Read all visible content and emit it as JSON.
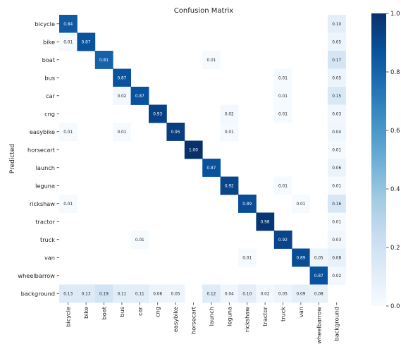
{
  "chart_data": {
    "type": "heatmap",
    "title": "Confusion Matrix",
    "ylabel": "Predicted",
    "xlabel": "",
    "classes": [
      "bicycle",
      "bike",
      "boat",
      "bus",
      "car",
      "cng",
      "easybike",
      "horsecart",
      "launch",
      "leguna",
      "rickshaw",
      "tractor",
      "truck",
      "van",
      "wheelbarrow",
      "background"
    ],
    "colormap": "Blues",
    "low_color": "#f7fbff",
    "high_color": "#08306b",
    "colorbar": {
      "min": 0.0,
      "max": 1.0,
      "ticks": [
        0.0,
        0.2,
        0.4,
        0.6,
        0.8,
        1.0
      ],
      "tick_labels": [
        "0.0",
        "0.2",
        "0.4",
        "0.6",
        "0.8",
        "1.0"
      ]
    },
    "cells": [
      {
        "row": "bicycle",
        "col": "bicycle",
        "value": 0.84
      },
      {
        "row": "bicycle",
        "col": "background",
        "value": 0.1
      },
      {
        "row": "bike",
        "col": "bicycle",
        "value": 0.01
      },
      {
        "row": "bike",
        "col": "bike",
        "value": 0.87
      },
      {
        "row": "bike",
        "col": "background",
        "value": 0.05
      },
      {
        "row": "boat",
        "col": "boat",
        "value": 0.81
      },
      {
        "row": "boat",
        "col": "launch",
        "value": 0.01
      },
      {
        "row": "boat",
        "col": "background",
        "value": 0.17
      },
      {
        "row": "bus",
        "col": "bus",
        "value": 0.87
      },
      {
        "row": "bus",
        "col": "truck",
        "value": 0.01
      },
      {
        "row": "bus",
        "col": "background",
        "value": 0.05
      },
      {
        "row": "car",
        "col": "bus",
        "value": 0.02
      },
      {
        "row": "car",
        "col": "car",
        "value": 0.87
      },
      {
        "row": "car",
        "col": "truck",
        "value": 0.01
      },
      {
        "row": "car",
        "col": "background",
        "value": 0.15
      },
      {
        "row": "cng",
        "col": "cng",
        "value": 0.93
      },
      {
        "row": "cng",
        "col": "leguna",
        "value": 0.02
      },
      {
        "row": "cng",
        "col": "truck",
        "value": 0.01
      },
      {
        "row": "cng",
        "col": "background",
        "value": 0.03
      },
      {
        "row": "easybike",
        "col": "bicycle",
        "value": 0.01
      },
      {
        "row": "easybike",
        "col": "bus",
        "value": 0.01
      },
      {
        "row": "easybike",
        "col": "easybike",
        "value": 0.95
      },
      {
        "row": "easybike",
        "col": "leguna",
        "value": 0.01
      },
      {
        "row": "easybike",
        "col": "background",
        "value": 0.04
      },
      {
        "row": "horsecart",
        "col": "horsecart",
        "value": 1.0
      },
      {
        "row": "horsecart",
        "col": "background",
        "value": 0.01
      },
      {
        "row": "launch",
        "col": "launch",
        "value": 0.87
      },
      {
        "row": "launch",
        "col": "background",
        "value": 0.06
      },
      {
        "row": "leguna",
        "col": "leguna",
        "value": 0.92
      },
      {
        "row": "leguna",
        "col": "truck",
        "value": 0.01
      },
      {
        "row": "leguna",
        "col": "background",
        "value": 0.01
      },
      {
        "row": "rickshaw",
        "col": "bicycle",
        "value": 0.01
      },
      {
        "row": "rickshaw",
        "col": "rickshaw",
        "value": 0.89
      },
      {
        "row": "rickshaw",
        "col": "van",
        "value": 0.01
      },
      {
        "row": "rickshaw",
        "col": "background",
        "value": 0.16
      },
      {
        "row": "tractor",
        "col": "tractor",
        "value": 0.98
      },
      {
        "row": "tractor",
        "col": "background",
        "value": 0.01
      },
      {
        "row": "truck",
        "col": "car",
        "value": 0.01
      },
      {
        "row": "truck",
        "col": "truck",
        "value": 0.92
      },
      {
        "row": "truck",
        "col": "background",
        "value": 0.03
      },
      {
        "row": "van",
        "col": "rickshaw",
        "value": 0.01
      },
      {
        "row": "van",
        "col": "van",
        "value": 0.89
      },
      {
        "row": "van",
        "col": "wheelbarrow",
        "value": 0.05
      },
      {
        "row": "van",
        "col": "background",
        "value": 0.08
      },
      {
        "row": "wheelbarrow",
        "col": "wheelbarrow",
        "value": 0.87
      },
      {
        "row": "wheelbarrow",
        "col": "background",
        "value": 0.02
      },
      {
        "row": "background",
        "col": "bicycle",
        "value": 0.13
      },
      {
        "row": "background",
        "col": "bike",
        "value": 0.13
      },
      {
        "row": "background",
        "col": "boat",
        "value": 0.19
      },
      {
        "row": "background",
        "col": "bus",
        "value": 0.11
      },
      {
        "row": "background",
        "col": "car",
        "value": 0.11
      },
      {
        "row": "background",
        "col": "cng",
        "value": 0.06
      },
      {
        "row": "background",
        "col": "easybike",
        "value": 0.05
      },
      {
        "row": "background",
        "col": "launch",
        "value": 0.12
      },
      {
        "row": "background",
        "col": "leguna",
        "value": 0.04
      },
      {
        "row": "background",
        "col": "rickshaw",
        "value": 0.1
      },
      {
        "row": "background",
        "col": "tractor",
        "value": 0.02
      },
      {
        "row": "background",
        "col": "truck",
        "value": 0.05
      },
      {
        "row": "background",
        "col": "van",
        "value": 0.09
      },
      {
        "row": "background",
        "col": "wheelbarrow",
        "value": 0.08
      }
    ]
  }
}
